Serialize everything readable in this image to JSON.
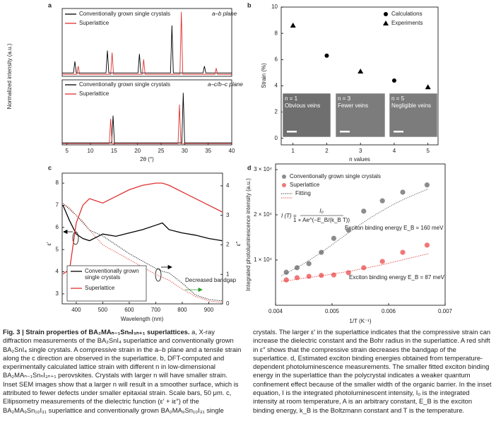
{
  "chart_data": [
    {
      "type": "line",
      "panel": "a",
      "y_label": "Normalized intensity (a.u.)",
      "annotation": "a–b plane",
      "xlim": [
        4,
        40
      ],
      "ylim": [
        0,
        1
      ],
      "series": [
        {
          "name": "Conventionally grown single crystals",
          "color": "#000000",
          "x": [
            4,
            6.4,
            6.7,
            7.0,
            13.3,
            13.6,
            13.9,
            20.1,
            20.4,
            20.7,
            27.0,
            27.3,
            27.6,
            33.9,
            34.2,
            34.5,
            40
          ],
          "values": [
            0.05,
            0.05,
            0.22,
            0.05,
            0.05,
            0.38,
            0.05,
            0.05,
            0.33,
            0.05,
            0.05,
            0.75,
            0.05,
            0.05,
            0.15,
            0.05,
            0.05
          ]
        },
        {
          "name": "Superlattice",
          "color": "#e03030",
          "x": [
            4,
            7.1,
            7.4,
            7.7,
            14.3,
            14.6,
            14.9,
            21.0,
            21.3,
            21.6,
            29.0,
            29.3,
            29.6,
            36.4,
            36.7,
            37.0,
            40
          ],
          "values": [
            0.03,
            0.03,
            0.15,
            0.03,
            0.03,
            0.35,
            0.03,
            0.03,
            0.25,
            0.03,
            0.03,
            0.95,
            0.03,
            0.03,
            0.12,
            0.03,
            0.03
          ]
        }
      ]
    },
    {
      "type": "line",
      "annotation": "a–c/b–c plane",
      "x_label": "2θ (°)",
      "xlim": [
        4,
        40
      ],
      "xticks": [
        5,
        10,
        15,
        20,
        25,
        30,
        35,
        40
      ],
      "ylim": [
        0,
        1
      ],
      "series": [
        {
          "name": "Conventionally grown single crystals",
          "color": "#000000",
          "x": [
            4,
            14.5,
            14.8,
            15.1,
            29.4,
            29.7,
            30.0,
            40
          ],
          "values": [
            0.03,
            0.03,
            0.45,
            0.03,
            0.03,
            0.8,
            0.03,
            0.03
          ]
        },
        {
          "name": "Superlattice",
          "color": "#e03030",
          "x": [
            4,
            14.0,
            14.3,
            14.6,
            28.6,
            28.9,
            29.2,
            40
          ],
          "values": [
            0.02,
            0.02,
            0.4,
            0.02,
            0.02,
            0.62,
            0.02,
            0.02
          ]
        }
      ]
    },
    {
      "type": "scatter",
      "panel": "b",
      "x_label": "n values",
      "y_label": "Strain (%)",
      "xlim": [
        0.65,
        5.3
      ],
      "xticks": [
        1,
        2,
        3,
        4,
        5
      ],
      "ylim": [
        -0.5,
        10
      ],
      "yticks": [
        0,
        2,
        4,
        6,
        8,
        10
      ],
      "series": [
        {
          "name": "Calculations",
          "color": "#000000",
          "marker": "circle",
          "x": [
            2,
            4
          ],
          "values": [
            6.3,
            4.4
          ]
        },
        {
          "name": "Experiments",
          "color": "#000000",
          "marker": "triangle",
          "x": [
            1,
            3,
            5
          ],
          "values": [
            8.6,
            5.1,
            3.9
          ]
        }
      ],
      "insets": [
        {
          "label": "n = 1",
          "text": "Obvious veins"
        },
        {
          "label": "n = 3",
          "text": "Fewer veins"
        },
        {
          "label": "n = 5",
          "text": "Negligible veins"
        }
      ]
    },
    {
      "type": "line",
      "panel": "c",
      "x_label": "Wavelength (nm)",
      "y_label": "ε′",
      "y2_label": "ε″",
      "annotation": "Decreased bandgap",
      "xlim": [
        347,
        952
      ],
      "xticks": [
        400,
        500,
        600,
        700,
        800,
        900
      ],
      "ylim": [
        2.55,
        8.45
      ],
      "yticks": [
        3,
        4,
        5,
        6,
        7,
        8
      ],
      "y2lim": [
        0,
        4.43
      ],
      "y2ticks": [
        0,
        1,
        2,
        3,
        4
      ],
      "x": [
        350,
        375,
        400,
        425,
        450,
        500,
        550,
        600,
        650,
        700,
        725,
        750,
        800,
        850,
        900,
        950
      ],
      "series": [
        {
          "name": "Conventionally grown single crystals",
          "color": "#000000",
          "values": [
            7.0,
            6.3,
            5.7,
            5.5,
            5.4,
            5.7,
            5.6,
            5.75,
            5.9,
            6.1,
            6.2,
            5.9,
            5.75,
            5.65,
            5.5,
            5.4
          ]
        },
        {
          "name": "Superlattice",
          "color": "#e03030",
          "values": [
            3.9,
            4.1,
            6.2,
            7.0,
            7.3,
            7.1,
            7.4,
            7.7,
            7.9,
            8.0,
            8.0,
            7.9,
            7.6,
            7.3,
            7.0,
            6.7
          ]
        },
        {
          "color": "#000000",
          "style": "dotted",
          "axis": "y2",
          "values": [
            3.4,
            3.2,
            3.0,
            2.75,
            2.5,
            2.3,
            2.0,
            1.7,
            1.45,
            1.2,
            1.1,
            1.05,
            0.7,
            0.3,
            0.15,
            0.1
          ]
        },
        {
          "color": "#e03030",
          "style": "dotted",
          "axis": "y2",
          "values": [
            3.4,
            3.25,
            3.0,
            2.8,
            2.5,
            2.0,
            1.75,
            1.5,
            1.25,
            1.0,
            0.9,
            0.8,
            0.5,
            0.25,
            0.1,
            0.05
          ]
        }
      ]
    },
    {
      "type": "scatter",
      "panel": "d",
      "x_label": "1/T (K⁻¹)",
      "y_label": "Integrated photoluminescence intensity (a.u.)",
      "xlim": [
        0.004,
        0.007
      ],
      "xticks": [
        0.004,
        0.005,
        0.006,
        0.007
      ],
      "ylim": [
        0,
        31250
      ],
      "yticks": [
        {
          "value": 10000,
          "label": "1 × 10⁴"
        },
        {
          "value": 20000,
          "label": "2 × 10⁴"
        },
        {
          "value": 30000,
          "label": "3 × 10⁴"
        }
      ],
      "equation": {
        "lhs": "I (T) =",
        "numerator": "I₀",
        "denominator": "1 + Ae^(−E_B/(k_B T))"
      },
      "annotations": [
        "Exciton binding energy E_B = 160 meV",
        "Exciton binding energy E_B = 87 meV"
      ],
      "series": [
        {
          "name": "Conventionally grown single crystals",
          "color": "#8c8c8c",
          "marker": "circle",
          "x": [
            0.00419,
            0.00438,
            0.00459,
            0.00481,
            0.00503,
            0.00529,
            0.00556,
            0.00589,
            0.00625,
            0.00668
          ],
          "values": [
            7300,
            8300,
            9200,
            11700,
            14800,
            16600,
            20800,
            23100,
            25000,
            26600
          ]
        },
        {
          "name": "Superlattice",
          "color": "#f07878",
          "marker": "circle",
          "x": [
            0.00419,
            0.00438,
            0.00459,
            0.00481,
            0.00503,
            0.00529,
            0.00556,
            0.00589,
            0.00625,
            0.00668
          ],
          "values": [
            5600,
            6100,
            6400,
            6600,
            6700,
            7200,
            8300,
            9700,
            11700,
            13300
          ]
        },
        {
          "name": "Fitting",
          "color": "#555555",
          "style": "dotted",
          "x": [
            0.0041,
            0.0043,
            0.0045,
            0.0047,
            0.0049,
            0.0051,
            0.0053,
            0.0055,
            0.0057,
            0.0059,
            0.0061,
            0.0063,
            0.0065,
            0.0067
          ],
          "values": [
            6500,
            7800,
            9200,
            10800,
            12500,
            14300,
            16100,
            17900,
            19500,
            21000,
            22400,
            23600,
            24700,
            25700
          ]
        },
        {
          "color": "#e03030",
          "style": "dotted",
          "x": [
            0.0041,
            0.0043,
            0.0045,
            0.0047,
            0.0049,
            0.0051,
            0.0053,
            0.0055,
            0.0057,
            0.0059,
            0.0061,
            0.0063,
            0.0065,
            0.0067
          ],
          "values": [
            5300,
            5600,
            6000,
            6300,
            6700,
            7100,
            7500,
            8000,
            8500,
            9000,
            9600,
            10200,
            10800,
            11400
          ]
        }
      ]
    }
  ],
  "caption": {
    "title": "Fig. 3 | Strain properties of BA₂MAₙ₋₁SnₙI₃ₙ₊₁ superlattices.",
    "body": "a, X-ray diffraction measurements of the BA₂SnI₄ superlattice and conventionally grown BA₂SnI₄ single crystals. A compressive strain in the a–b plane and a tensile strain along the c direction are observed in the superlattice. b, DFT-computed and experimentally calculated lattice strain with different n in low-dimensional BA₂MAₙ₋₁SnₙI₃ₙ₊₁ perovskites. Crystals with larger n will have smaller strain. Inset SEM images show that a larger n will result in a smoother surface, which is attributed to fewer defects under smaller epitaxial strain. Scale bars, 50 μm. c, Ellipsometry measurements of the dielectric function (ε′ + iε″) of the BA₂MA₉Sn₁₀I₃₁ superlattice and conventionally grown BA₂MA₉Sn₁₀I₃₁ single crystals. The larger ε′ in the superlattice indicates that the compressive strain can increase the dielectric constant and the Bohr radius in the superlattice. A red shift in ε″ shows that the compressive strain decreases the bandgap of the superlattice. d, Estimated exciton binding energies obtained from temperature-dependent photoluminescence measurements. The smaller fitted exciton binding energy in the superlattice than the polycrystal indicates a weaker quantum confinement effect because of the smaller width of the organic barrier. In the inset equation, I is the integrated photoluminescent intensity, I₀ is the integrated intensity at room temperature, A is an arbitrary constant, E_B is the exciton binding energy, k_B is the Boltzmann constant and T is the temperature."
  }
}
